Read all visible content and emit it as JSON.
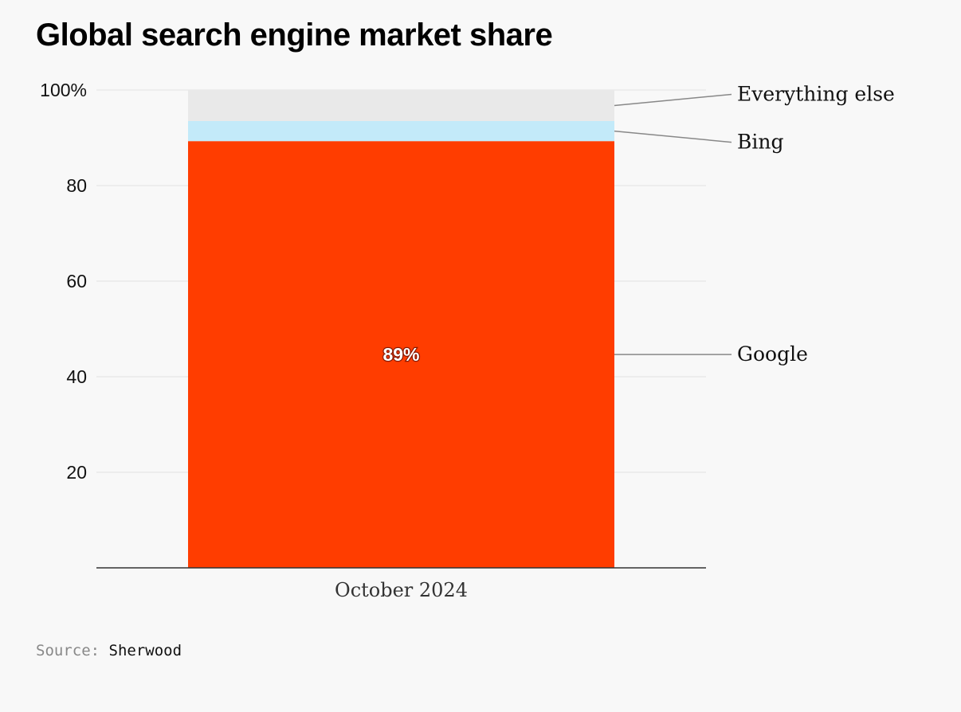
{
  "title": "Global search engine market share",
  "source": {
    "prefix": "Source:",
    "name": "Sherwood"
  },
  "chart_data": {
    "type": "bar",
    "stacked": true,
    "categories": [
      "October 2024"
    ],
    "series": [
      {
        "name": "Google",
        "values": [
          89.3
        ],
        "color": "#ff3d00",
        "label": "89%"
      },
      {
        "name": "Bing",
        "values": [
          4.2
        ],
        "color": "#c3eaf9"
      },
      {
        "name": "Everything else",
        "values": [
          6.5
        ],
        "color": "#e9e9e9"
      }
    ],
    "ylim": [
      0,
      100
    ],
    "yticks": [
      {
        "value": 20,
        "label": "20"
      },
      {
        "value": 40,
        "label": "40"
      },
      {
        "value": 60,
        "label": "60"
      },
      {
        "value": 80,
        "label": "80"
      },
      {
        "value": 100,
        "label": "100%"
      }
    ],
    "grid": true,
    "legend": "right, labeled with leader lines"
  }
}
